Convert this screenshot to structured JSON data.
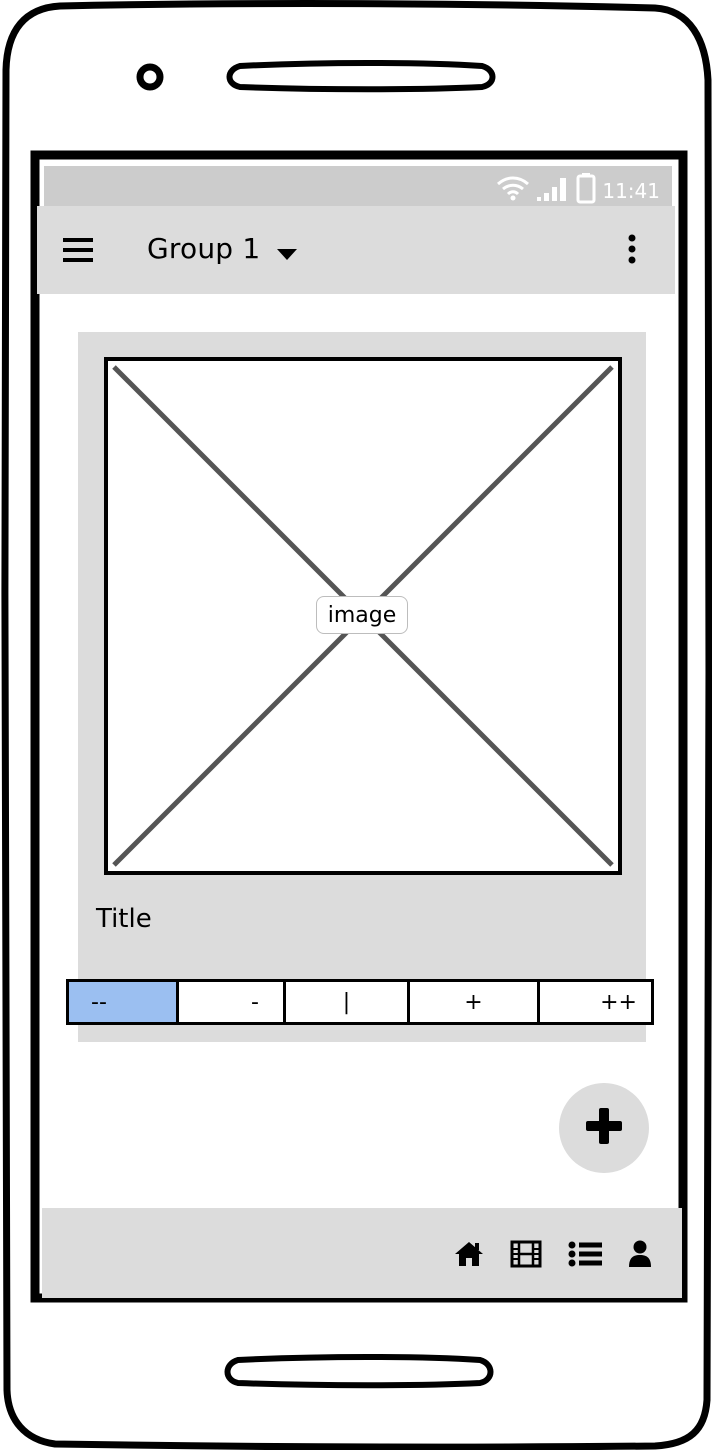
{
  "status_bar": {
    "time": "11:41",
    "icons": [
      "wifi-icon",
      "signal-icon",
      "battery-icon"
    ]
  },
  "app_bar": {
    "title": "Group 1",
    "icons": [
      "menu-icon",
      "chevron-down-icon",
      "more-vert-icon"
    ]
  },
  "card": {
    "image_label": "image",
    "title": "Title"
  },
  "segmented_control": {
    "items": [
      "--",
      "-",
      "|",
      "+",
      "++"
    ],
    "selected_index": 0,
    "active_color": "#9bbff1"
  },
  "fab": {
    "icon": "plus-icon"
  },
  "bottom_nav": {
    "icons": [
      "home-icon",
      "film-icon",
      "list-icon",
      "user-icon"
    ]
  },
  "colors": {
    "surface": "#dcdcdc",
    "status_bar": "#cccccc",
    "accent": "#9bbff1"
  }
}
